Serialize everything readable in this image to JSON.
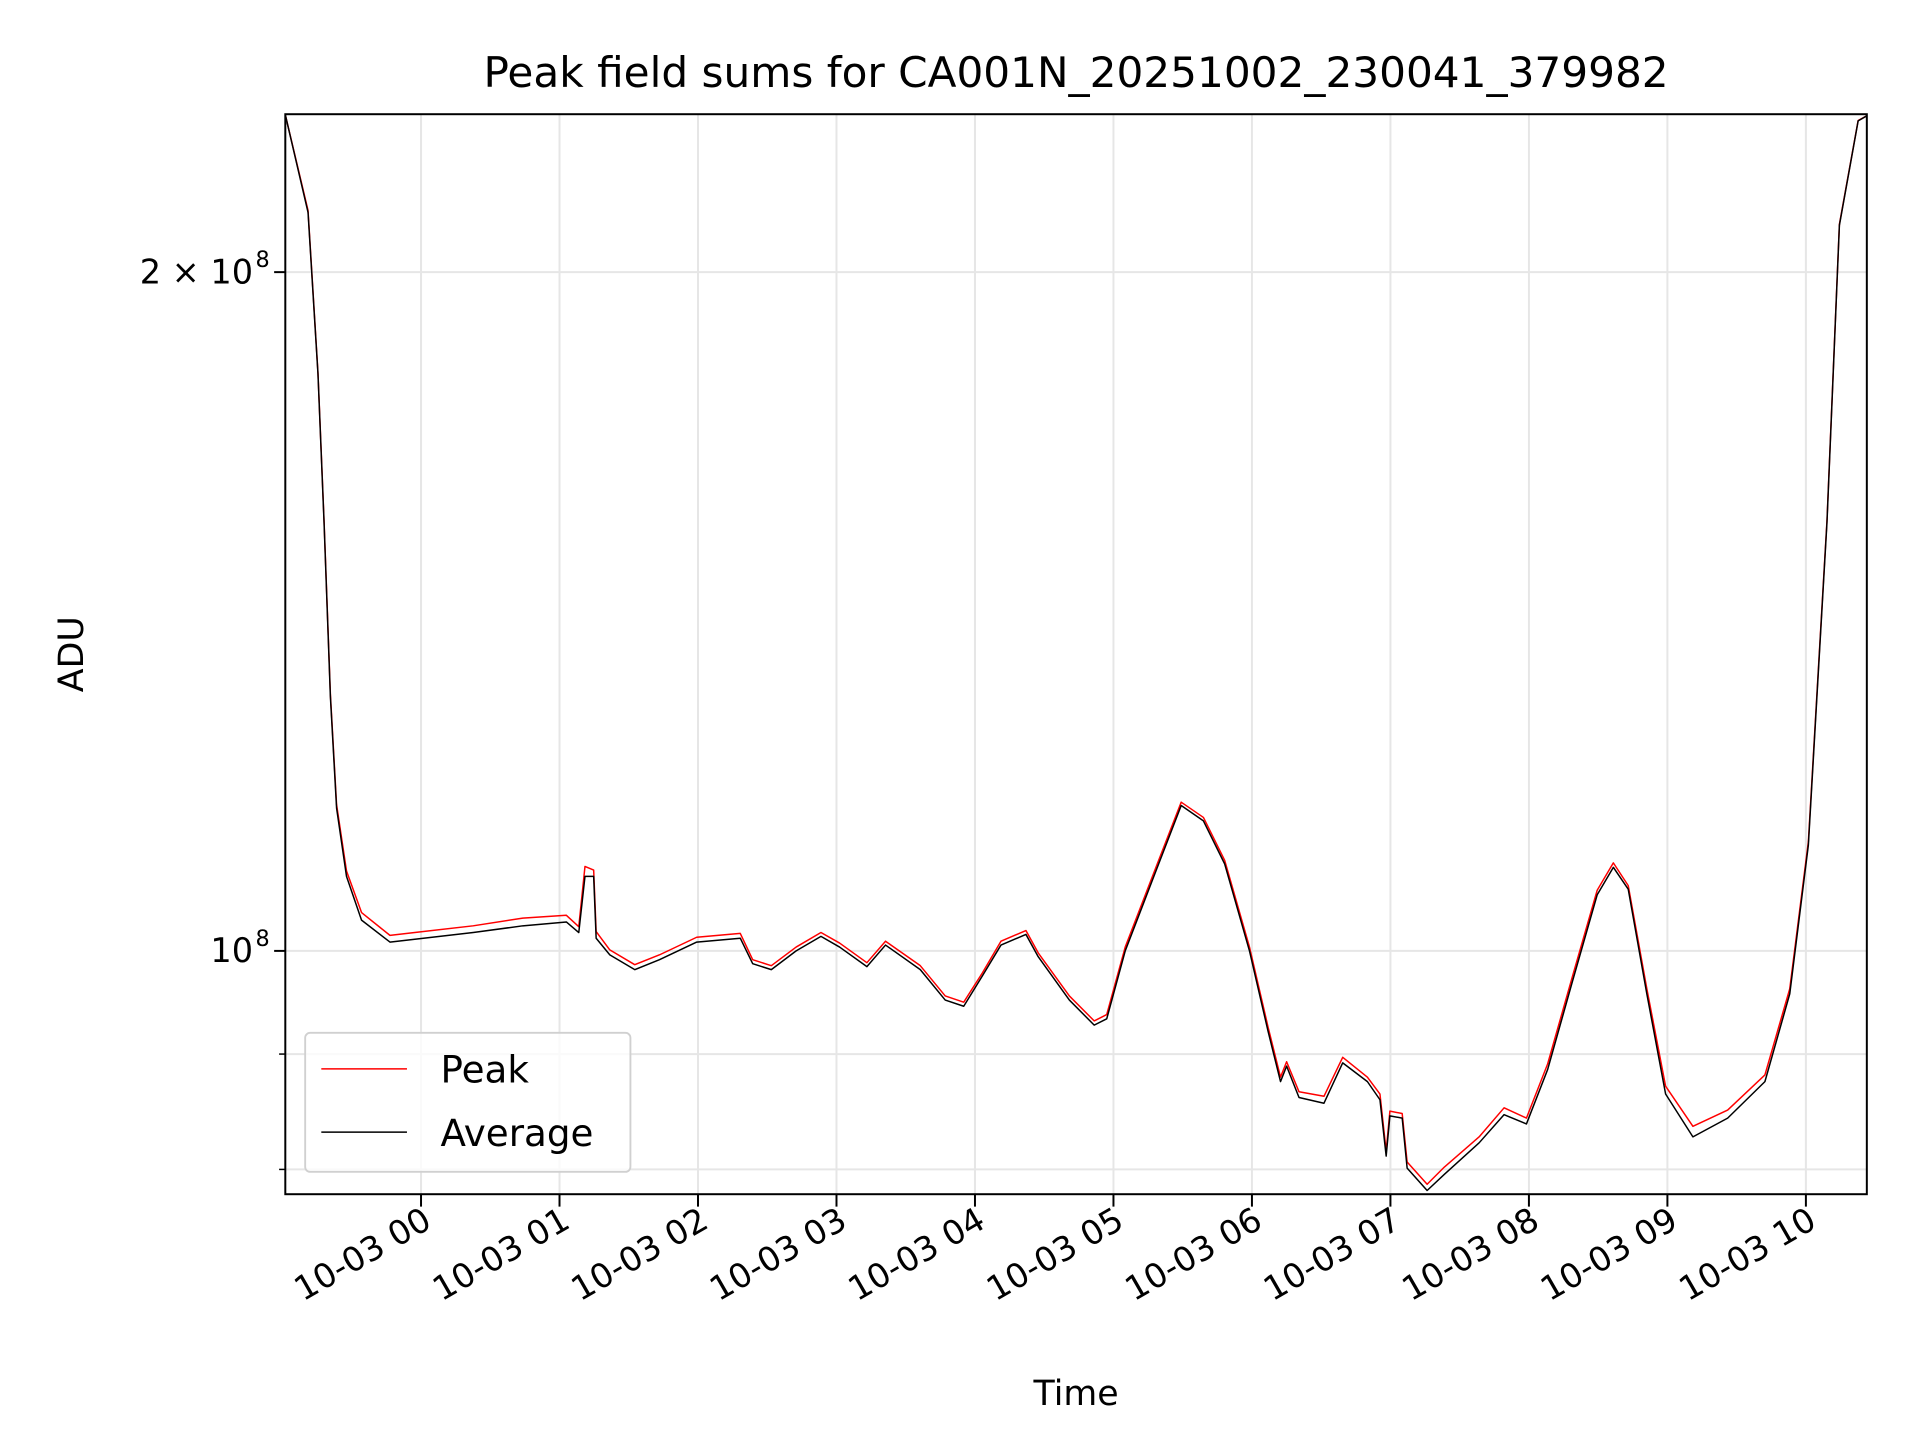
{
  "chart_data": {
    "type": "line",
    "title": "Peak field sums for CA001N_20251002_230041_379982",
    "xlabel": "Time",
    "ylabel": "ADU",
    "yscale": "log",
    "x_units": "hours relative to 10-03 00:00",
    "xlim": [
      -0.98,
      10.44
    ],
    "ylim": [
      78000000,
      235000000
    ],
    "grid": true,
    "legend_position": "lower-left",
    "x_ticks": [
      {
        "value": 0,
        "label": "10-03 00"
      },
      {
        "value": 1,
        "label": "10-03 01"
      },
      {
        "value": 2,
        "label": "10-03 02"
      },
      {
        "value": 3,
        "label": "10-03 03"
      },
      {
        "value": 4,
        "label": "10-03 04"
      },
      {
        "value": 5,
        "label": "10-03 05"
      },
      {
        "value": 6,
        "label": "10-03 06"
      },
      {
        "value": 7,
        "label": "10-03 07"
      },
      {
        "value": 8,
        "label": "10-03 08"
      },
      {
        "value": 9,
        "label": "10-03 09"
      },
      {
        "value": 10,
        "label": "10-03 10"
      }
    ],
    "y_major_ticks": [
      {
        "value": 100000000,
        "base": "10",
        "exp": "8"
      },
      {
        "value": 200000000,
        "base": "2 × 10",
        "exp": "8"
      }
    ],
    "y_minor_ticks": [
      80000000,
      90000000
    ],
    "x": [
      -0.978,
      -0.816,
      -0.744,
      -0.7,
      -0.655,
      -0.61,
      -0.538,
      -0.43,
      -0.224,
      0.018,
      0.377,
      0.735,
      1.049,
      1.139,
      1.184,
      1.247,
      1.265,
      1.363,
      1.543,
      1.722,
      1.991,
      2.305,
      2.395,
      2.529,
      2.709,
      2.888,
      3.022,
      3.22,
      3.354,
      3.605,
      3.785,
      3.919,
      4.054,
      4.188,
      4.368,
      4.457,
      4.682,
      4.861,
      4.951,
      5.085,
      5.309,
      5.489,
      5.65,
      5.803,
      5.982,
      6.117,
      6.206,
      6.25,
      6.34,
      6.52,
      6.655,
      6.834,
      6.924,
      6.969,
      6.996,
      7.085,
      7.121,
      7.265,
      7.39,
      7.641,
      7.821,
      7.982,
      8.135,
      8.314,
      8.493,
      8.61,
      8.717,
      8.852,
      8.987,
      9.184,
      9.435,
      9.704,
      9.883,
      10.018,
      10.152,
      10.242,
      10.377,
      10.44
    ],
    "series": [
      {
        "name": "Peak",
        "color": "#ff0000",
        "values": [
          2.346,
          2.13,
          1.805,
          1.552,
          1.3,
          1.161,
          1.085,
          1.04,
          1.016,
          1.02,
          1.026,
          1.034,
          1.037,
          1.025,
          1.09,
          1.086,
          1.02,
          1.001,
          0.986,
          0.996,
          1.014,
          1.018,
          0.991,
          0.985,
          1.004,
          1.019,
          1.008,
          0.988,
          1.01,
          0.985,
          0.955,
          0.949,
          0.978,
          1.01,
          1.021,
          0.998,
          0.955,
          0.931,
          0.937,
          1.004,
          1.09,
          1.164,
          1.146,
          1.097,
          1.004,
          0.925,
          0.879,
          0.893,
          0.866,
          0.862,
          0.897,
          0.879,
          0.864,
          0.815,
          0.849,
          0.847,
          0.806,
          0.788,
          0.802,
          0.827,
          0.852,
          0.843,
          0.891,
          0.974,
          1.064,
          1.094,
          1.069,
          0.962,
          0.871,
          0.836,
          0.85,
          0.881,
          0.962,
          1.118,
          1.552,
          2.1,
          2.335,
          2.346
        ]
      },
      {
        "name": "Average",
        "color": "#000000",
        "values": [
          2.346,
          2.126,
          1.803,
          1.549,
          1.297,
          1.157,
          1.079,
          1.032,
          1.009,
          1.013,
          1.019,
          1.026,
          1.03,
          1.019,
          1.079,
          1.079,
          1.013,
          0.996,
          0.981,
          0.991,
          1.009,
          1.013,
          0.987,
          0.981,
          1.0,
          1.015,
          1.004,
          0.984,
          1.006,
          0.981,
          0.951,
          0.945,
          0.975,
          1.006,
          1.017,
          0.994,
          0.951,
          0.927,
          0.933,
          1.0,
          1.086,
          1.16,
          1.142,
          1.093,
          1.0,
          0.921,
          0.875,
          0.889,
          0.861,
          0.856,
          0.892,
          0.875,
          0.859,
          0.811,
          0.845,
          0.843,
          0.801,
          0.783,
          0.796,
          0.822,
          0.846,
          0.838,
          0.886,
          0.969,
          1.059,
          1.089,
          1.065,
          0.957,
          0.864,
          0.827,
          0.843,
          0.875,
          0.957,
          1.114,
          1.549,
          2.098,
          2.334,
          2.346
        ]
      }
    ],
    "values_unit": "1e8 ADU"
  }
}
